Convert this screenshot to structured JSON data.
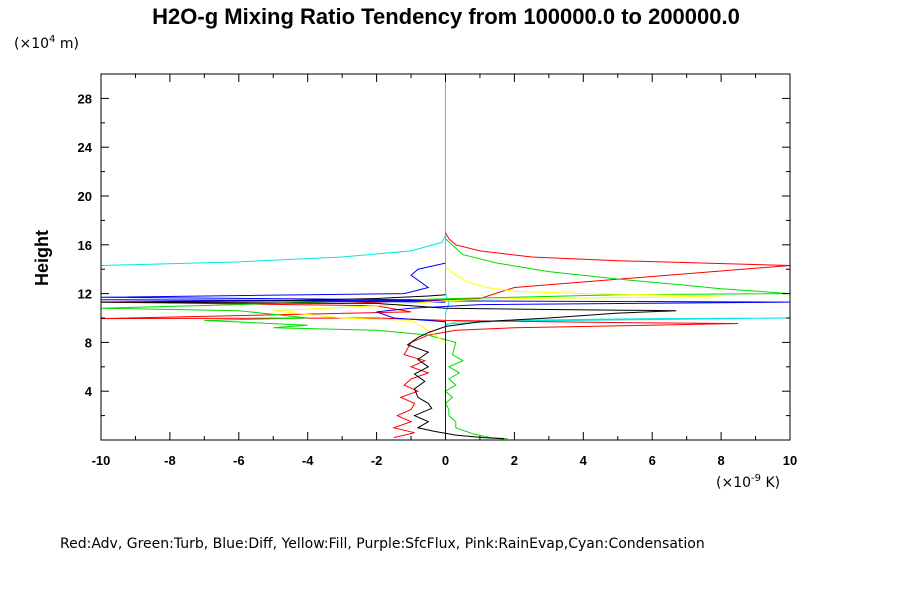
{
  "chart_data": {
    "type": "line",
    "title": "H2O-g Mixing Ratio Tendency from 100000.0 to 200000.0",
    "ylabel": "Height",
    "y_unit_prefix": "(×10",
    "y_unit_exp": "4",
    "y_unit_suffix": " m)",
    "x_unit_prefix": "(×10",
    "x_unit_exp": "-9",
    "x_unit_suffix": " K)",
    "xlim": [
      -10,
      10
    ],
    "ylim": [
      0,
      30
    ],
    "x_ticks": [
      -10,
      -8,
      -6,
      -4,
      -2,
      0,
      2,
      4,
      6,
      8,
      10
    ],
    "y_ticks": [
      4,
      8,
      12,
      16,
      20,
      24,
      28
    ],
    "grid": false,
    "legend_text": "Red:Adv, Green:Turb, Blue:Diff, Yellow:Fill, Purple:SfcFlux, Pink:RainEvap,Cyan:Condensation",
    "colors": {
      "red": "#ff0000",
      "green": "#00dd00",
      "blue": "#0000ff",
      "yellow": "#ffff00",
      "purple": "#a020f0",
      "pink": "#ff80c0",
      "cyan": "#00e5e5",
      "black": "#000000"
    },
    "series": [
      {
        "color": "#00e5e5",
        "points": [
          [
            -10,
            14.3
          ],
          [
            -6,
            14.6
          ],
          [
            -3,
            15.0
          ],
          [
            -1,
            15.5
          ],
          [
            -0.1,
            16.2
          ],
          [
            0,
            16.8
          ],
          [
            0,
            30
          ],
          [
            0,
            16.8
          ],
          [
            0,
            12
          ],
          [
            0.1,
            11.2
          ],
          [
            0,
            10.4
          ],
          [
            0,
            9.5
          ],
          [
            2,
            9.8
          ],
          [
            6,
            9.95
          ],
          [
            10,
            10.0
          ],
          [
            0.3,
            9.7
          ],
          [
            0,
            9.4
          ],
          [
            0,
            0.2
          ]
        ]
      },
      {
        "color": "#ff0000",
        "points": [
          [
            0,
            17
          ],
          [
            0.1,
            16.5
          ],
          [
            0.3,
            16.0
          ],
          [
            1,
            15.5
          ],
          [
            2.5,
            15.0
          ],
          [
            5,
            14.7
          ],
          [
            10,
            14.3
          ],
          [
            2,
            12.5
          ],
          [
            1,
            11.6
          ],
          [
            -3,
            11.2
          ],
          [
            -10,
            11.3
          ],
          [
            -2,
            11.0
          ],
          [
            -1,
            10.5
          ],
          [
            -10,
            9.95
          ],
          [
            -2,
            10.0
          ],
          [
            0,
            9.8
          ],
          [
            3,
            9.7
          ],
          [
            6,
            9.6
          ],
          [
            8.5,
            9.55
          ],
          [
            2,
            9.2
          ],
          [
            0.3,
            9.0
          ],
          [
            -0.5,
            8.6
          ],
          [
            -1,
            8.0
          ],
          [
            -1.2,
            7.0
          ],
          [
            -0.6,
            6.5
          ],
          [
            -1.0,
            6.0
          ],
          [
            -0.5,
            5.5
          ],
          [
            -1.0,
            5.0
          ],
          [
            -1.2,
            4.5
          ],
          [
            -0.8,
            4.0
          ],
          [
            -1.3,
            3.5
          ],
          [
            -0.9,
            3.0
          ],
          [
            -1.0,
            2.5
          ],
          [
            -1.4,
            2.0
          ],
          [
            -1.0,
            1.5
          ],
          [
            -1.5,
            1.0
          ],
          [
            -0.9,
            0.6
          ],
          [
            -1.5,
            0.2
          ]
        ]
      },
      {
        "color": "#00dd00",
        "points": [
          [
            0,
            16.5
          ],
          [
            0.5,
            15.2
          ],
          [
            1.5,
            14.5
          ],
          [
            3,
            13.8
          ],
          [
            5,
            13.2
          ],
          [
            6.5,
            12.8
          ],
          [
            8,
            12.4
          ],
          [
            10,
            12.0
          ],
          [
            5,
            11.9
          ],
          [
            2,
            11.7
          ],
          [
            0.3,
            11.6
          ],
          [
            -1,
            11.5
          ],
          [
            -4,
            11.3
          ],
          [
            -6,
            11.1
          ],
          [
            -10,
            10.8
          ],
          [
            -6,
            10.6
          ],
          [
            -4,
            10.0
          ],
          [
            -7,
            9.8
          ],
          [
            -4,
            9.4
          ],
          [
            -5,
            9.2
          ],
          [
            -2,
            9.0
          ],
          [
            -0.5,
            8.6
          ],
          [
            0.3,
            8.0
          ],
          [
            0.2,
            7.0
          ],
          [
            0.5,
            6.5
          ],
          [
            0.1,
            6.0
          ],
          [
            0.4,
            5.5
          ],
          [
            0.1,
            5.0
          ],
          [
            0.3,
            4.5
          ],
          [
            0,
            4.0
          ],
          [
            0.2,
            3.5
          ],
          [
            0,
            3.0
          ],
          [
            0.1,
            2.5
          ],
          [
            0.1,
            2.0
          ],
          [
            0.3,
            1.5
          ],
          [
            0.3,
            1.0
          ],
          [
            0.8,
            0.5
          ],
          [
            1.3,
            0.2
          ],
          [
            1.8,
            0.1
          ]
        ]
      },
      {
        "color": "#0000ff",
        "points": [
          [
            0,
            14.5
          ],
          [
            -0.8,
            14.0
          ],
          [
            -1.0,
            13.5
          ],
          [
            -0.5,
            12.5
          ],
          [
            -1.2,
            12.0
          ],
          [
            -10,
            11.7
          ],
          [
            -1,
            11.5
          ],
          [
            0,
            11.3
          ],
          [
            -10,
            11.5
          ],
          [
            10,
            11.3
          ],
          [
            1,
            11.1
          ],
          [
            -1,
            10.8
          ],
          [
            -2,
            10.5
          ],
          [
            -1.5,
            10.0
          ],
          [
            0,
            9.7
          ],
          [
            0,
            0.2
          ]
        ]
      },
      {
        "color": "#ffff00",
        "points": [
          [
            0,
            14.2
          ],
          [
            0.3,
            13.5
          ],
          [
            0.7,
            12.9
          ],
          [
            1.2,
            12.5
          ],
          [
            2,
            12.2
          ],
          [
            4,
            12.0
          ],
          [
            8,
            11.8
          ],
          [
            6,
            11.7
          ],
          [
            2,
            11.6
          ],
          [
            0,
            11.4
          ],
          [
            -2,
            11.0
          ],
          [
            -5,
            10.6
          ],
          [
            -3,
            10.0
          ],
          [
            -1,
            9.8
          ],
          [
            -0.4,
            8.8
          ],
          [
            0,
            8.0
          ]
        ]
      },
      {
        "color": "#000000",
        "points": [
          [
            0,
            11.9
          ],
          [
            -0.5,
            11.8
          ],
          [
            -2,
            11.6
          ],
          [
            -5,
            11.4
          ],
          [
            -10,
            11.3
          ],
          [
            -2,
            11.2
          ],
          [
            -1,
            11.0
          ],
          [
            0,
            10.8
          ],
          [
            3,
            10.7
          ],
          [
            6.7,
            10.6
          ],
          [
            5,
            10.4
          ],
          [
            3,
            10.0
          ],
          [
            1,
            9.7
          ],
          [
            0,
            9.3
          ],
          [
            -0.5,
            8.8
          ],
          [
            -0.8,
            8.4
          ],
          [
            -1.1,
            7.8
          ],
          [
            -0.5,
            7.2
          ],
          [
            -0.8,
            6.6
          ],
          [
            -0.5,
            6.0
          ],
          [
            -0.9,
            5.4
          ],
          [
            -0.6,
            4.8
          ],
          [
            -0.9,
            4.2
          ],
          [
            -0.8,
            3.5
          ],
          [
            -0.5,
            3.0
          ],
          [
            -0.4,
            2.6
          ],
          [
            -0.9,
            2.0
          ],
          [
            -0.5,
            1.5
          ],
          [
            -0.8,
            1.0
          ],
          [
            -0.3,
            0.7
          ],
          [
            0.3,
            0.4
          ],
          [
            1.1,
            0.2
          ],
          [
            1.7,
            0.1
          ]
        ]
      }
    ]
  }
}
